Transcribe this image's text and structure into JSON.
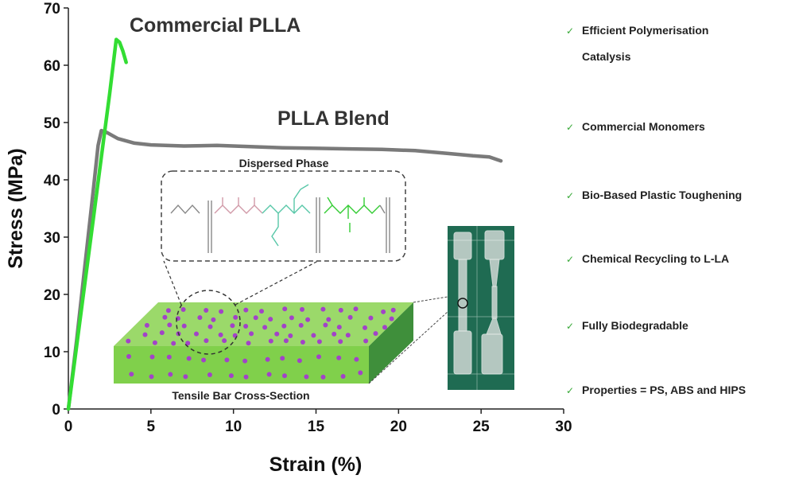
{
  "chart_data": {
    "type": "line",
    "xlabel": "Strain (%)",
    "ylabel": "Stress (MPa)",
    "xlim": [
      0,
      30
    ],
    "ylim": [
      0,
      70
    ],
    "xticks": [
      0,
      5,
      10,
      15,
      20,
      25,
      30
    ],
    "yticks": [
      0,
      10,
      20,
      30,
      40,
      50,
      60,
      70
    ],
    "grid": false,
    "series": [
      {
        "name": "Commercial PLLA",
        "color": "#33dd33",
        "x": [
          0,
          0.5,
          1.0,
          1.5,
          2.0,
          2.5,
          2.9,
          3.1,
          3.3,
          3.5
        ],
        "y": [
          0,
          11,
          22,
          33,
          44,
          55,
          64.5,
          64.0,
          62.5,
          60.5
        ]
      },
      {
        "name": "PLLA Blend",
        "color": "#7a7a7a",
        "x": [
          0,
          0.5,
          1.0,
          1.5,
          1.8,
          2.0,
          2.3,
          3.0,
          4.0,
          5.0,
          7.0,
          9.0,
          11.0,
          13.0,
          15.0,
          17.0,
          19.0,
          21.0,
          23.0,
          24.5,
          25.5,
          26.2
        ],
        "y": [
          0,
          12,
          25,
          38,
          46,
          48.6,
          48.3,
          47.2,
          46.4,
          46.1,
          45.9,
          46.0,
          45.8,
          45.6,
          45.5,
          45.4,
          45.3,
          45.1,
          44.6,
          44.2,
          44.0,
          43.3
        ]
      }
    ],
    "annotations": {
      "dispersed_phase": "Dispersed Phase",
      "cross_section": "Tensile Bar Cross-Section"
    }
  },
  "features": [
    "Efficient Polymerisation",
    "Catalysis",
    "Commercial Monomers",
    "Bio-Based Plastic Toughening",
    "Chemical Recycling to L-LA",
    "Fully Biodegradable",
    "Properties = PS, ABS and HIPS"
  ],
  "feature_check": "✓",
  "colors": {
    "bar_top": "#9bd96a",
    "bar_front": "#7fcf4a",
    "bar_side": "#3e8f3a",
    "dots": "#a243c8",
    "photo_bg": "#1f6b52"
  }
}
